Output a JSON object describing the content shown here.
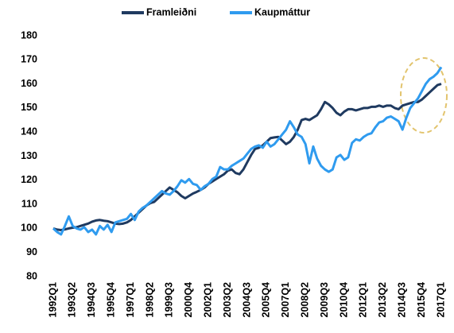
{
  "chart_data": {
    "type": "line",
    "categories": [
      "1992Q1",
      null,
      null,
      null,
      null,
      "1993Q2",
      null,
      null,
      null,
      null,
      "1994Q3",
      null,
      null,
      null,
      null,
      "1995Q4",
      null,
      null,
      null,
      null,
      "1997Q1",
      null,
      null,
      null,
      null,
      "1998Q2",
      null,
      null,
      null,
      null,
      "1999Q3",
      null,
      null,
      null,
      null,
      "2000Q4",
      null,
      null,
      null,
      null,
      "2002Q1",
      null,
      null,
      null,
      null,
      "2003Q2",
      null,
      null,
      null,
      null,
      "2004Q3",
      null,
      null,
      null,
      null,
      "2005Q4",
      null,
      null,
      null,
      null,
      "2007Q1",
      null,
      null,
      null,
      null,
      "2008Q2",
      null,
      null,
      null,
      null,
      "2009Q3",
      null,
      null,
      null,
      null,
      "2010Q4",
      null,
      null,
      null,
      null,
      "2012Q1",
      null,
      null,
      null,
      null,
      "2013Q2",
      null,
      null,
      null,
      null,
      "2014Q3",
      null,
      null,
      null,
      null,
      "2015Q4",
      null,
      null,
      null,
      null,
      "2017Q1"
    ],
    "series": [
      {
        "name": "Framleiðni",
        "color": "#1f3a60",
        "values": [
          100,
          99.5,
          99.3,
          99.6,
          100,
          100.3,
          100.5,
          101,
          101.5,
          102,
          102.8,
          103.3,
          103.5,
          103.2,
          103,
          102.5,
          102,
          101.8,
          102,
          102.5,
          103.5,
          105,
          106.5,
          108,
          109.5,
          110.5,
          111,
          112.5,
          114,
          115.5,
          117,
          116,
          115,
          113.5,
          112.5,
          113.5,
          114.5,
          115.2,
          116,
          117,
          118.5,
          119.5,
          120.5,
          121.5,
          122.5,
          124,
          124.5,
          123,
          122.5,
          124.5,
          127.5,
          130.5,
          133,
          133.5,
          134.5,
          136,
          137.5,
          137.8,
          138,
          136.5,
          135,
          136,
          138,
          141,
          145,
          145.5,
          145,
          146,
          147,
          149.5,
          152.5,
          151.5,
          150,
          148,
          147,
          148.5,
          149.5,
          149.5,
          149,
          149.5,
          150,
          150,
          150.5,
          150.5,
          151,
          150.5,
          151,
          151,
          150,
          149.5,
          151,
          151.5,
          152,
          152.5,
          152.5,
          153.5,
          155,
          156.5,
          158,
          159.5,
          160
        ]
      },
      {
        "name": "Kaupmáttur",
        "color": "#2f9bef",
        "values": [
          100,
          98.5,
          97.5,
          101,
          105,
          101,
          100,
          99.5,
          100.5,
          98.5,
          99.5,
          97.5,
          101,
          99.5,
          101.5,
          98.5,
          102.5,
          103,
          103.5,
          104,
          106,
          103.5,
          107,
          108.5,
          109.5,
          111,
          112.5,
          114,
          115.5,
          114.5,
          114,
          115.5,
          117.5,
          120,
          119,
          120.5,
          118.5,
          118,
          116,
          117.5,
          118.5,
          120.5,
          121.5,
          125.5,
          124.5,
          124.5,
          126,
          127,
          128,
          129,
          131,
          133,
          134,
          134.5,
          133.5,
          136,
          134,
          135,
          137,
          139,
          141,
          144.5,
          142,
          139,
          138,
          135,
          127,
          134,
          129,
          126,
          124.5,
          123.5,
          124.5,
          129.5,
          130.5,
          128.5,
          129.5,
          135.5,
          137,
          136.5,
          138,
          139,
          139.5,
          142,
          144,
          144.5,
          146,
          146.5,
          145.5,
          144.5,
          141,
          146,
          150,
          152,
          154,
          157,
          160,
          162,
          163,
          164.5,
          167
        ]
      }
    ],
    "ylim": [
      80,
      180
    ],
    "yticks": [
      80,
      90,
      100,
      110,
      120,
      130,
      140,
      150,
      160,
      170,
      180
    ],
    "legend": "top",
    "grid": false
  }
}
